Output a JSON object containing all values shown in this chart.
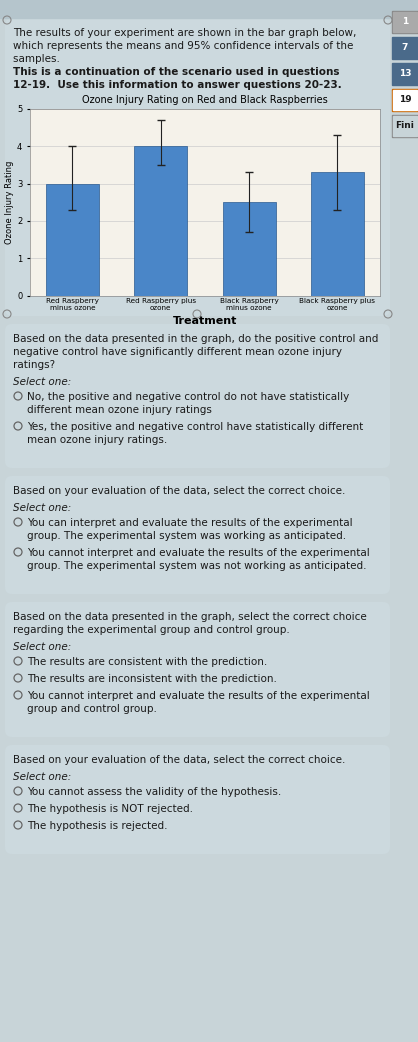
{
  "chart_title": "Ozone Injury Rating on Red and Black Raspberries",
  "xlabel": "Treatment",
  "ylabel": "Ozone Injury Rating",
  "categories": [
    "Red Raspberry\nminus ozone",
    "Red Raspberry plus\nozone",
    "Black Raspberry\nminus ozone",
    "Black Raspberry plus\nozone"
  ],
  "values": [
    3.0,
    4.0,
    2.5,
    3.3
  ],
  "ci_lower": [
    0.7,
    0.5,
    0.8,
    1.0
  ],
  "ci_upper": [
    1.0,
    0.7,
    0.8,
    1.0
  ],
  "bar_color": "#4a86c8",
  "bar_edgecolor": "#2a5a90",
  "ylim": [
    0,
    5
  ],
  "yticks": [
    0,
    1,
    2,
    3,
    4,
    5
  ],
  "grid_color": "#cccccc",
  "chart_area_bg": "#f5f2ea",
  "outer_bg": "#c8d4d8",
  "card_bg": "#ccd9de",
  "text_color": "#1a1a1a",
  "right_labels": [
    "1",
    "7",
    "13",
    "19",
    "Fini"
  ],
  "right_label_bg": [
    "#aaaaaa",
    "#4a6a8a",
    "#4a6a8a",
    "#4a6a8a",
    "#888888"
  ],
  "right_label_border": [
    "#888888",
    "#4a6a8a",
    "#4a6a8a",
    "#cc6600",
    "#888888"
  ],
  "sections": [
    {
      "question": "Based on the data presented in the graph, do the positive control and\nnegative control have significantly different mean ozone injury\nratings?",
      "select_label": "Select one:",
      "options": [
        "No, the positive and negative control do not have statistically\ndifferent mean ozone injury ratings",
        "Yes, the positive and negative control have statistically different\nmean ozone injury ratings."
      ]
    },
    {
      "question": "Based on your evaluation of the data, select the correct choice.",
      "select_label": "Select one:",
      "options": [
        "You can interpret and evaluate the results of the experimental\ngroup. The experimental system was working as anticipated.",
        "You cannot interpret and evaluate the results of the experimental\ngroup. The experimental system was not working as anticipated."
      ]
    },
    {
      "question": "Based on the data presented in the graph, select the correct choice\nregarding the experimental group and control group.",
      "select_label": "Select one:",
      "options": [
        "The results are consistent with the prediction.",
        "The results are inconsistent with the prediction.",
        "You cannot interpret and evaluate the results of the experimental\ngroup and control group."
      ]
    },
    {
      "question": "Based on your evaluation of the data, select the correct choice.",
      "select_label": "Select one:",
      "options": [
        "You cannot assess the validity of the hypothesis.",
        "The hypothesis is NOT rejected.",
        "The hypothesis is rejected."
      ]
    }
  ]
}
